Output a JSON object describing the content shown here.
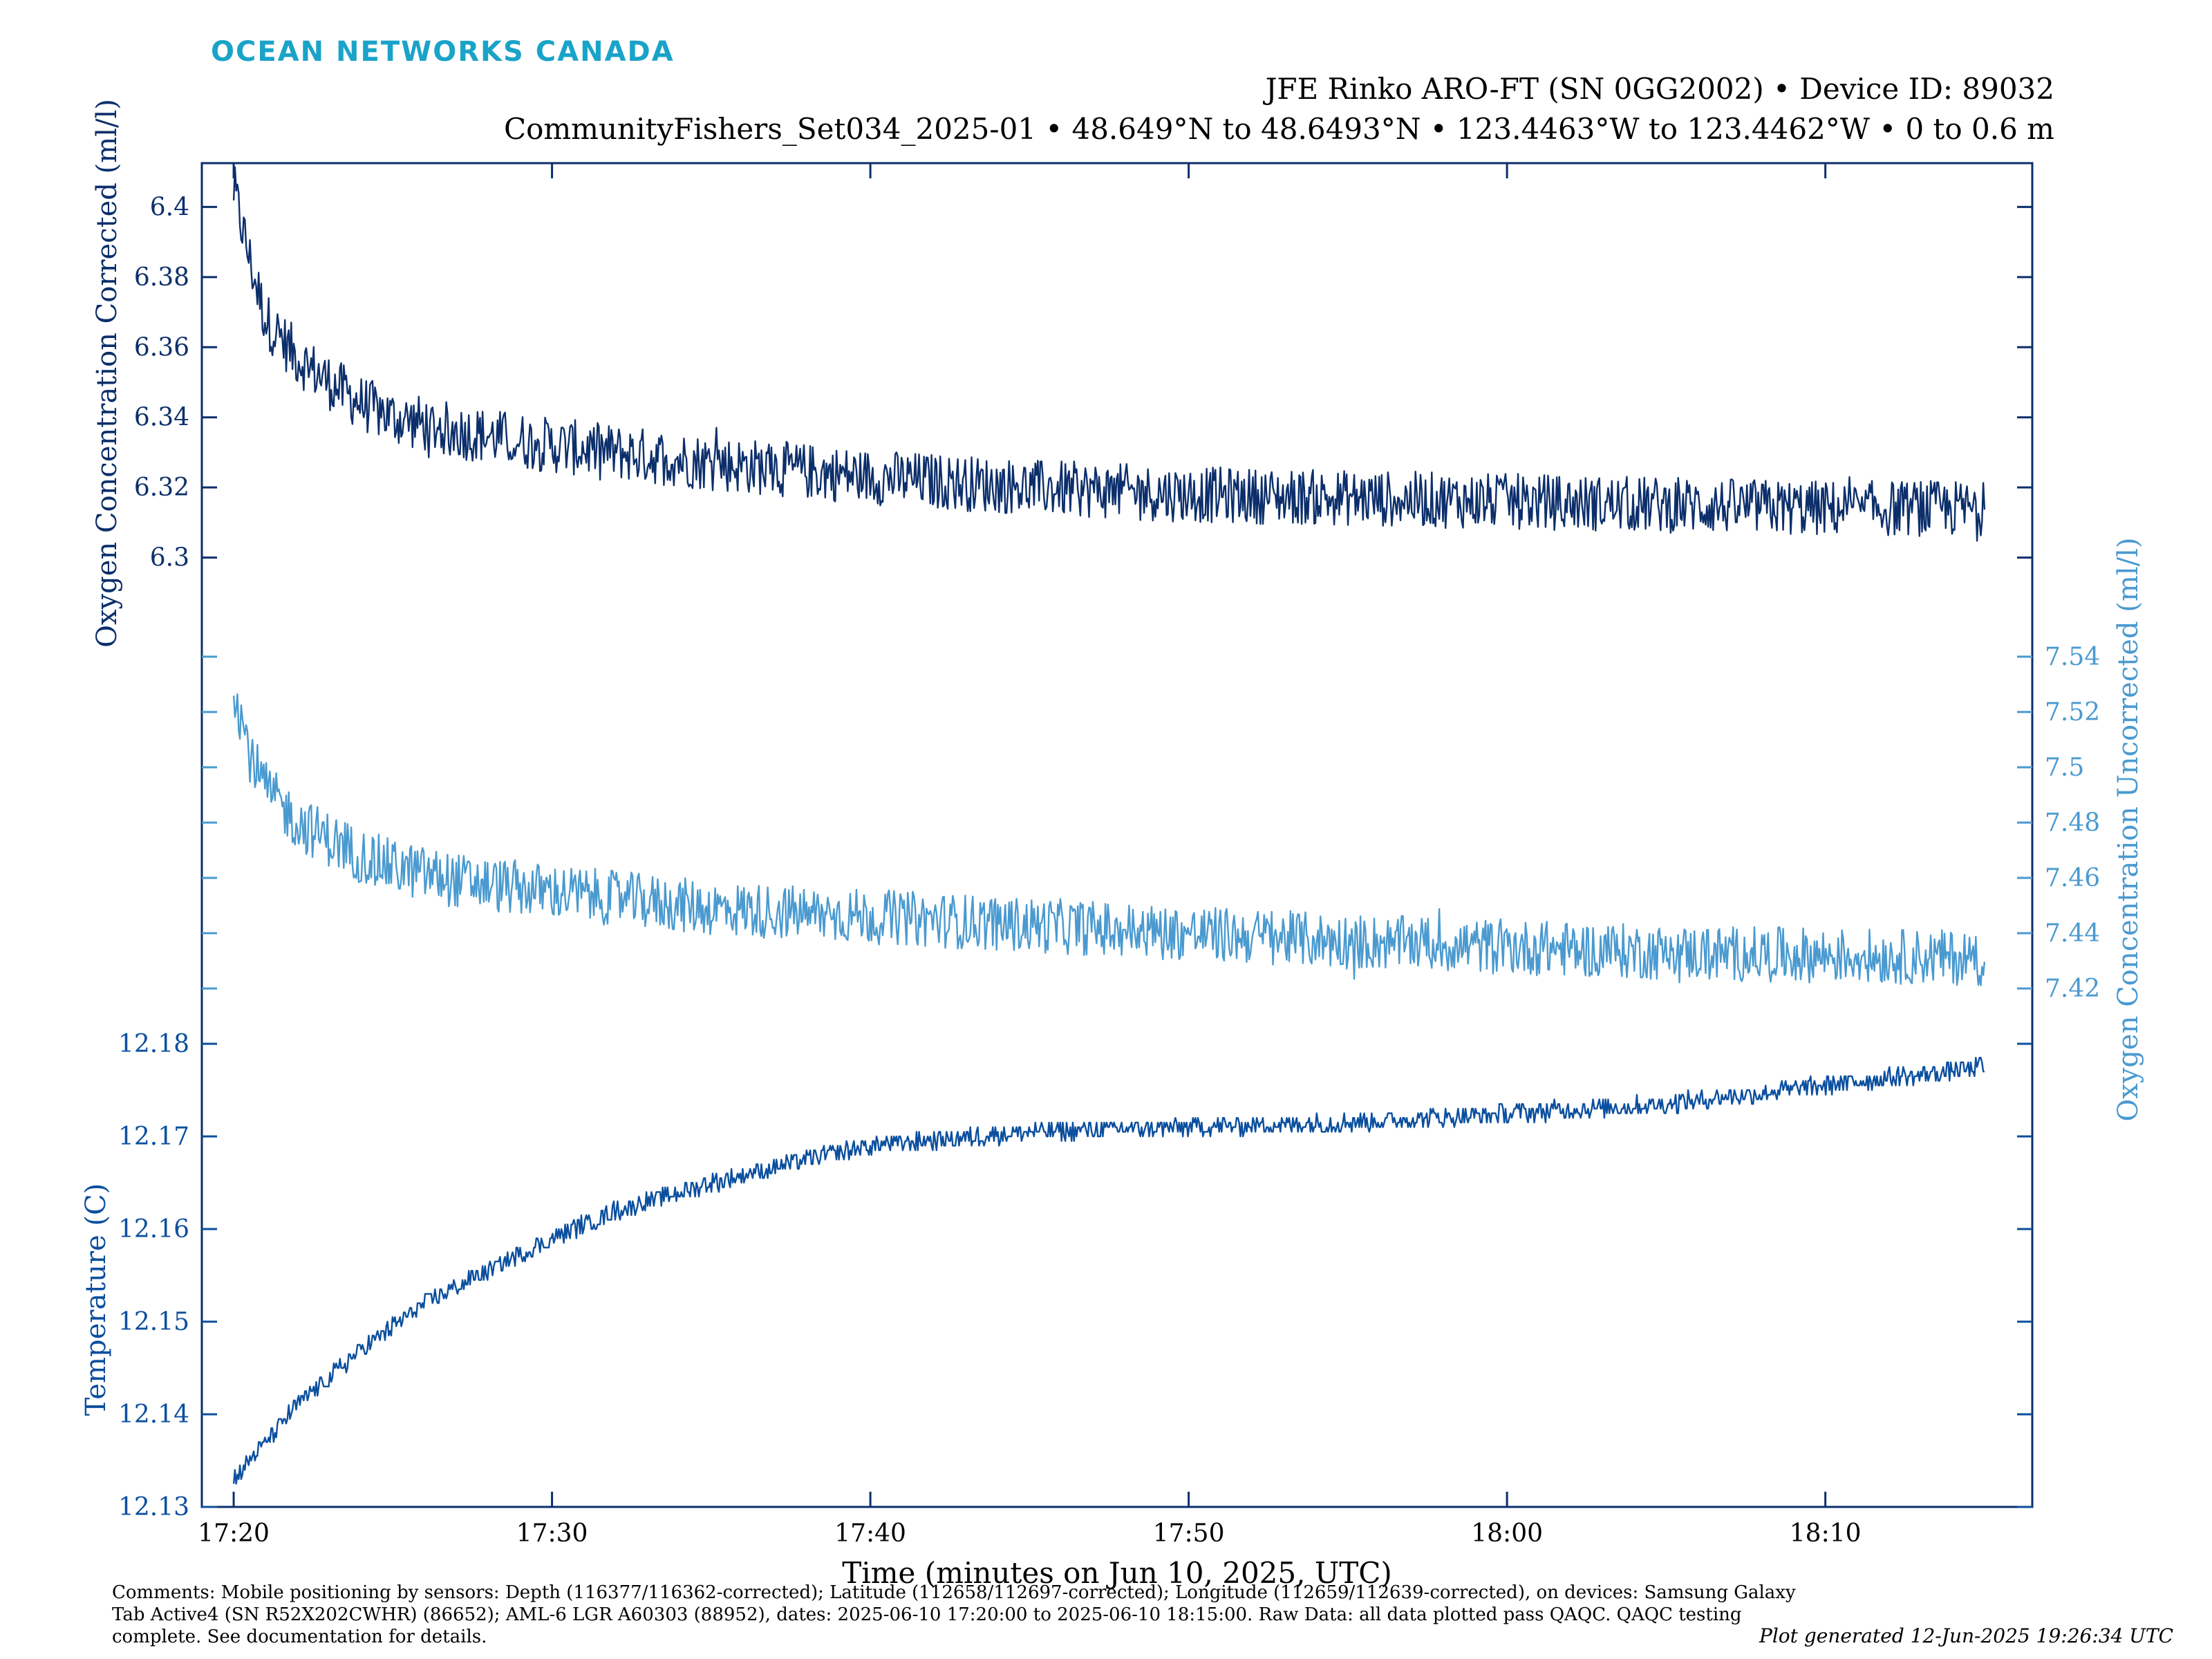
{
  "header": {
    "logo_text": "OCEAN NETWORKS CANADA",
    "title_line1": "JFE Rinko ARO-FT (SN 0GG2002) • Device ID: 89032",
    "title_line2": "CommunityFishers_Set034_2025-01 • 48.649°N to 48.6493°N • 123.4463°W to 123.4462°W • 0 to 0.6 m"
  },
  "footer": {
    "comments": "Comments: Mobile positioning by sensors: Depth (116377/116362-corrected); Latitude (112658/112697-corrected); Longitude (112659/112639-corrected), on devices: Samsung Galaxy Tab Active4 (SN R52X202CWHR) (86652); AML-6 LGR A60303 (88952), dates: 2025-06-10 17:20:00 to 2025-06-10 18:15:00. Raw Data: all data plotted pass QAQC. QAQC testing complete. See documentation for details.",
    "generated": "Plot generated 12-Jun-2025 19:26:34 UTC"
  },
  "colors": {
    "oxygen_corrected": "#0c2f6b",
    "oxygen_uncorrected": "#4a9ad0",
    "temperature": "#0b4f9e",
    "axis_frame": "#0c2f6b"
  },
  "chart_data": {
    "type": "line",
    "xlabel": "Time (minutes on Jun 10, 2025, UTC)",
    "x_ticks": [
      "17:20",
      "17:30",
      "17:40",
      "17:50",
      "18:00",
      "18:10"
    ],
    "x_tick_minutes": [
      0,
      10,
      20,
      30,
      40,
      50
    ],
    "x_range_minutes": [
      -1,
      56.5
    ],
    "series": [
      {
        "key": "oxygen_corrected",
        "axis_label": "Oxygen Concentration Corrected (ml/l)",
        "axis_side": "left",
        "ylim": [
          6.2875,
          6.4125
        ],
        "yticks": [
          6.3,
          6.32,
          6.34,
          6.36,
          6.38,
          6.4
        ],
        "ytick_labels": [
          "6.3",
          "6.32",
          "6.34",
          "6.36",
          "6.38",
          "6.4"
        ],
        "x_minutes": [
          0,
          0.5,
          1,
          2,
          3,
          4,
          5,
          7,
          10,
          15,
          20,
          25,
          30,
          35,
          40,
          45,
          50,
          55
        ],
        "values": [
          6.405,
          6.385,
          6.368,
          6.357,
          6.35,
          6.344,
          6.34,
          6.336,
          6.332,
          6.327,
          6.323,
          6.32,
          6.318,
          6.317,
          6.316,
          6.315,
          6.314,
          6.314
        ],
        "noise": 0.008
      },
      {
        "key": "oxygen_uncorrected",
        "axis_label": "Oxygen Concentration Uncorrected (ml/l)",
        "axis_side": "right",
        "ylim": [
          7.4,
          7.56
        ],
        "yticks": [
          7.42,
          7.44,
          7.46,
          7.48,
          7.5,
          7.52,
          7.54
        ],
        "ytick_labels": [
          "7.42",
          "7.44",
          "7.46",
          "7.48",
          "7.5",
          "7.52",
          "7.54"
        ],
        "x_minutes": [
          0,
          0.5,
          1,
          2,
          3,
          4,
          5,
          7,
          10,
          15,
          20,
          25,
          30,
          35,
          40,
          45,
          50,
          55
        ],
        "values": [
          7.53,
          7.505,
          7.492,
          7.48,
          7.474,
          7.468,
          7.464,
          7.459,
          7.455,
          7.449,
          7.446,
          7.443,
          7.44,
          7.437,
          7.435,
          7.433,
          7.432,
          7.431
        ],
        "noise": 0.01
      },
      {
        "key": "temperature",
        "axis_label": "Temperature (C)",
        "axis_side": "left",
        "ylim": [
          12.13,
          12.18
        ],
        "yticks": [
          12.13,
          12.14,
          12.15,
          12.16,
          12.17,
          12.18
        ],
        "ytick_labels": [
          "12.13",
          "12.14",
          "12.15",
          "12.16",
          "12.17",
          "12.18"
        ],
        "x_minutes": [
          0,
          1,
          2,
          3,
          4,
          5,
          6,
          8,
          10,
          12,
          15,
          18,
          20,
          25,
          30,
          35,
          40,
          45,
          50,
          55
        ],
        "values": [
          12.133,
          12.137,
          12.141,
          12.144,
          12.147,
          12.1495,
          12.152,
          12.1555,
          12.159,
          12.162,
          12.165,
          12.1675,
          12.169,
          12.1705,
          12.171,
          12.1715,
          12.1725,
          12.1735,
          12.1755,
          12.1775
        ],
        "noise": 0.001
      }
    ]
  }
}
